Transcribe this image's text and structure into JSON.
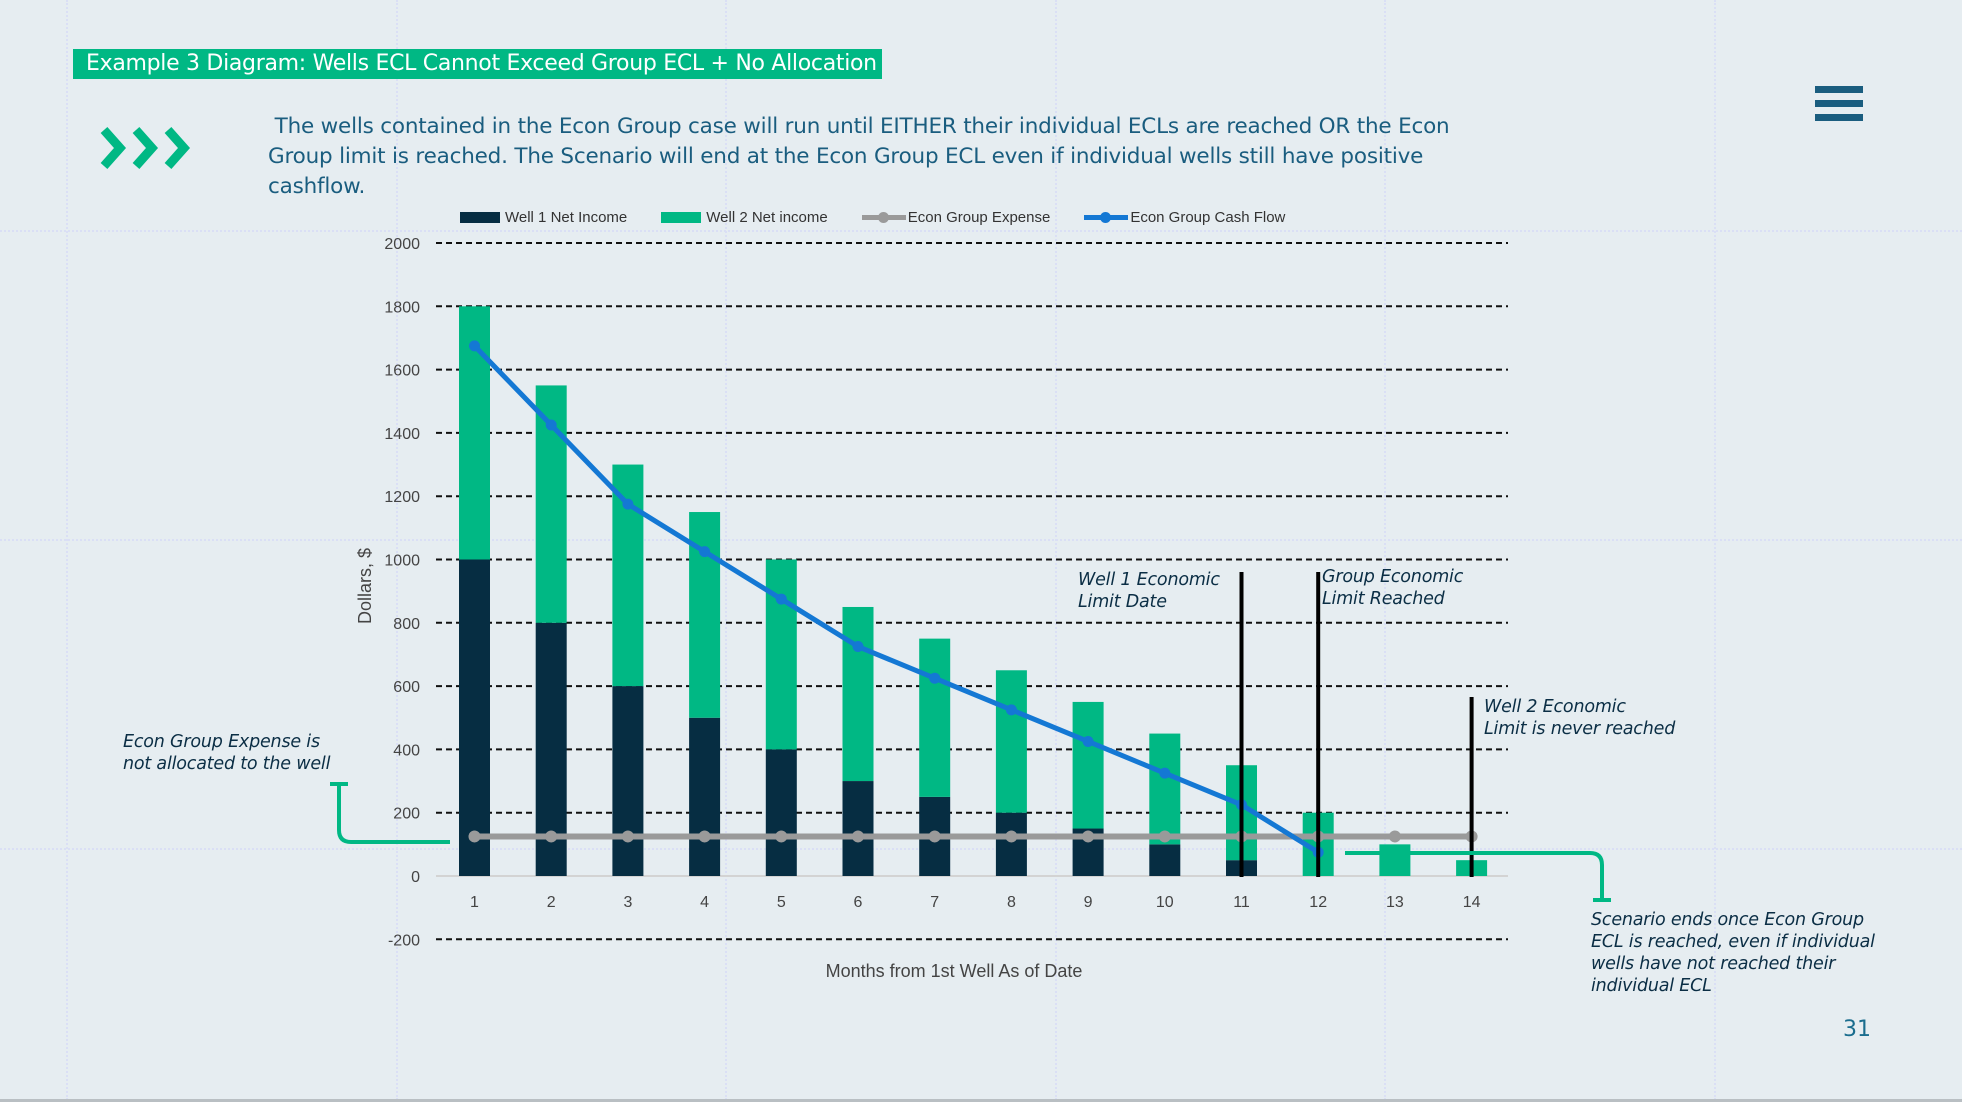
{
  "slide": {
    "title": "Example 3 Diagram: Wells ECL Cannot Exceed Group ECL + No Allocation",
    "intro_text": " The wells contained in the Econ Group case will run until EITHER their individual ECLs are reached OR the Econ\nGroup limit is reached. The Scenario will end at the Econ Group ECL even if individual wells still have positive\ncashflow.",
    "page_number": "31",
    "icons": {
      "bullet": "triple-chevron-right-icon",
      "menu": "hamburger-menu-icon"
    },
    "colors": {
      "accent_green": "#00b884",
      "text_blue": "#1a5d7f",
      "background": "#e6edf1"
    }
  },
  "annotations": {
    "expense_note": "Econ Group Expense is\nnot allocated to the well",
    "well1_ecl": "Well 1 Economic\nLimit Date",
    "group_ecl": "Group Economic\nLimit Reached",
    "well2_ecl": "Well 2 Economic\nLimit is never reached",
    "scenario_note": "Scenario ends once Econ Group\nECL is reached, even if individual\nwells have not reached their\nindividual ECL"
  },
  "chart_data": {
    "type": "bar",
    "stacked": true,
    "title": "",
    "xlabel": "Months from 1st Well As of Date",
    "ylabel": "Dollars, $",
    "categories": [
      "1",
      "2",
      "3",
      "4",
      "5",
      "6",
      "7",
      "8",
      "9",
      "10",
      "11",
      "12",
      "13",
      "14"
    ],
    "ylim": [
      -200,
      2000
    ],
    "yticks": [
      -200,
      0,
      200,
      400,
      600,
      800,
      1000,
      1200,
      1400,
      1600,
      1800,
      2000
    ],
    "grid": true,
    "legend_position": "top",
    "series": [
      {
        "name": "Well 1 Net Income",
        "kind": "bar",
        "color": "#062d42",
        "values": [
          1000,
          800,
          600,
          500,
          400,
          300,
          250,
          200,
          150,
          100,
          50,
          0,
          0,
          0
        ]
      },
      {
        "name": "Well 2 Net income",
        "kind": "bar",
        "color": "#00b884",
        "values": [
          800,
          750,
          700,
          650,
          600,
          550,
          500,
          450,
          400,
          350,
          300,
          200,
          100,
          50
        ]
      },
      {
        "name": "Econ Group Expense",
        "kind": "line",
        "color": "#9a9a9a",
        "values": [
          125,
          125,
          125,
          125,
          125,
          125,
          125,
          125,
          125,
          125,
          125,
          125,
          125,
          125
        ]
      },
      {
        "name": "Econ Group Cash Flow",
        "kind": "line",
        "color": "#1478d4",
        "values": [
          1675,
          1425,
          1175,
          1025,
          875,
          725,
          625,
          525,
          425,
          325,
          225,
          75,
          null,
          null
        ]
      }
    ],
    "markers": [
      {
        "label": "Well 1 Economic Limit Date",
        "x": 11
      },
      {
        "label": "Group Economic Limit Reached",
        "x": 12
      },
      {
        "label": "Well 2 Economic Limit is never reached",
        "x": 14
      }
    ]
  }
}
